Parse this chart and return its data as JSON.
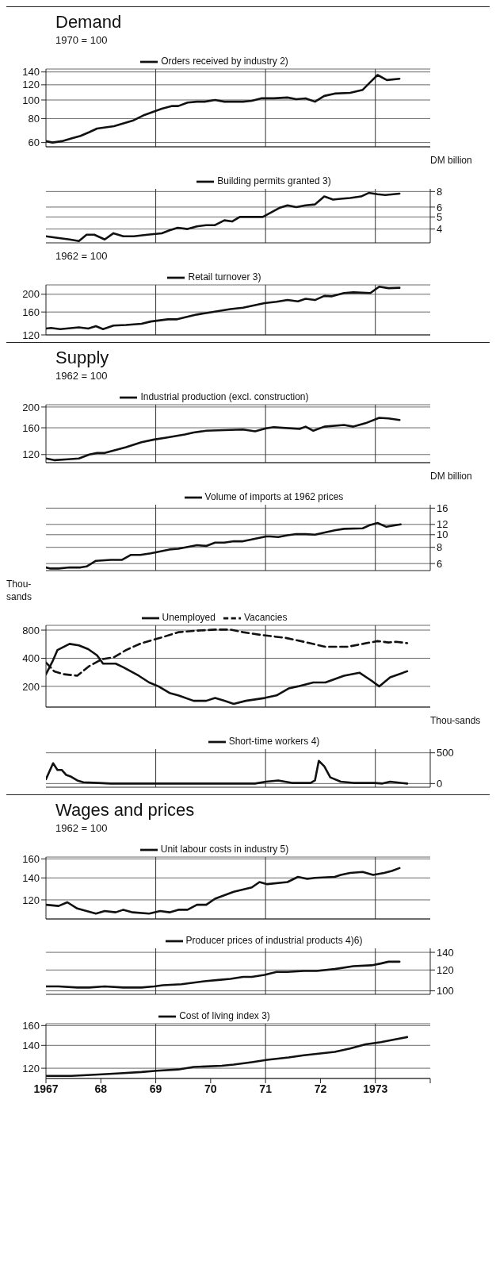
{
  "chart_data": [
    {
      "type": "line",
      "title": "Demand",
      "annotations": [
        "1970 = 100"
      ],
      "xlim": [
        1967,
        1974
      ],
      "ylim": [
        57,
        145
      ],
      "yticks": [
        60,
        80,
        100,
        120,
        140
      ],
      "log": "y",
      "grid": "y",
      "legend": "top",
      "tick_labels": "y",
      "ref_lines": [
        {
          "axis": "x",
          "value": 1969
        },
        {
          "axis": "x",
          "value": 1971
        },
        {
          "axis": "x",
          "value": 1973
        }
      ],
      "series": [
        {
          "name": "Orders received by industry 2)",
          "color": "#111111",
          "x": [
            1967.0,
            1967.12,
            1967.29,
            1967.46,
            1967.63,
            1967.79,
            1967.93,
            1968.24,
            1968.58,
            1968.77,
            1969.11,
            1969.3,
            1969.41,
            1969.58,
            1969.75,
            1969.89,
            1970.08,
            1970.25,
            1970.59,
            1970.75,
            1970.92,
            1971.15,
            1971.4,
            1971.56,
            1971.73,
            1971.9,
            1972.07,
            1972.26,
            1972.54,
            1972.77,
            1972.91,
            1973.04,
            1973.21,
            1973.44
          ],
          "values": [
            61,
            60,
            61,
            63,
            65,
            68,
            71,
            73,
            78,
            83,
            90,
            93,
            93,
            97,
            98,
            98,
            100,
            98,
            98,
            99,
            102,
            102,
            103,
            101,
            102,
            98,
            105,
            108,
            109,
            113,
            124,
            135,
            127,
            129
          ]
        }
      ]
    },
    {
      "type": "line",
      "y2label": "DM billion",
      "xlim": [
        1967,
        1974
      ],
      "y2lim": [
        3.1,
        8.4
      ],
      "y2ticks": [
        4,
        5,
        6,
        8
      ],
      "log": "y2",
      "grid": "y",
      "legend": "top",
      "tick_labels": "y",
      "ref_lines": [
        {
          "axis": "x",
          "value": 1969
        },
        {
          "axis": "x",
          "value": 1971
        },
        {
          "axis": "x",
          "value": 1973
        }
      ],
      "series": [
        {
          "name": "Building permits granted 3)",
          "color": "#111111",
          "axis": "y2",
          "x": [
            1967.0,
            1967.21,
            1967.43,
            1967.6,
            1967.74,
            1967.88,
            1968.07,
            1968.23,
            1968.41,
            1968.6,
            1968.85,
            1969.11,
            1969.25,
            1969.4,
            1969.58,
            1969.75,
            1969.92,
            1970.08,
            1970.25,
            1970.39,
            1970.53,
            1970.95,
            1971.09,
            1971.25,
            1971.4,
            1971.56,
            1971.73,
            1971.9,
            1972.07,
            1972.23,
            1972.37,
            1972.54,
            1972.74,
            1972.88,
            1973.04,
            1973.18,
            1973.44
          ],
          "values": [
            3.5,
            3.4,
            3.3,
            3.2,
            3.6,
            3.6,
            3.3,
            3.7,
            3.5,
            3.5,
            3.6,
            3.7,
            3.9,
            4.1,
            4.0,
            4.2,
            4.3,
            4.3,
            4.7,
            4.6,
            5.0,
            5.0,
            5.4,
            5.9,
            6.2,
            6.0,
            6.2,
            6.3,
            7.3,
            6.9,
            7.0,
            7.1,
            7.3,
            7.8,
            7.6,
            7.5,
            7.7
          ]
        }
      ]
    },
    {
      "type": "line",
      "annotations": [
        "1962 = 100"
      ],
      "xlim": [
        1967,
        1974
      ],
      "ylim": [
        120,
        225
      ],
      "yticks": [
        120,
        160,
        200
      ],
      "log": "y",
      "grid": "y",
      "legend": "top",
      "tick_labels": "y",
      "ref_lines": [
        {
          "axis": "x",
          "value": 1969
        },
        {
          "axis": "x",
          "value": 1971
        },
        {
          "axis": "x",
          "value": 1973
        }
      ],
      "series": [
        {
          "name": "Retail turnover 3)",
          "color": "#111111",
          "x": [
            1967.0,
            1967.09,
            1967.26,
            1967.6,
            1967.77,
            1967.91,
            1968.04,
            1968.23,
            1968.46,
            1968.74,
            1968.91,
            1969.22,
            1969.39,
            1969.75,
            1970.03,
            1970.36,
            1970.59,
            1970.98,
            1971.2,
            1971.4,
            1971.59,
            1971.73,
            1971.9,
            1972.07,
            1972.21,
            1972.43,
            1972.6,
            1972.91,
            1973.07,
            1973.24,
            1973.44
          ],
          "values": [
            130,
            131,
            129,
            132,
            130,
            134,
            129,
            135,
            136,
            138,
            142,
            146,
            146,
            155,
            160,
            166,
            169,
            179,
            182,
            186,
            183,
            189,
            186,
            196,
            195,
            203,
            205,
            203,
            220,
            216,
            217
          ]
        }
      ]
    },
    {
      "type": "line",
      "title": "Supply",
      "annotations": [
        "1962 = 100"
      ],
      "xlim": [
        1967,
        1974
      ],
      "ylim": [
        110,
        205
      ],
      "yticks": [
        120,
        160,
        200
      ],
      "log": "y",
      "grid": "y",
      "legend": "top",
      "tick_labels": "y",
      "ref_lines": [
        {
          "axis": "x",
          "value": 1969
        },
        {
          "axis": "x",
          "value": 1971
        },
        {
          "axis": "x",
          "value": 1973
        }
      ],
      "series": [
        {
          "name": "Industrial production (excl. construction)",
          "color": "#111111",
          "x": [
            1967.0,
            1967.15,
            1967.4,
            1967.6,
            1967.79,
            1967.93,
            1968.07,
            1968.46,
            1968.74,
            1968.97,
            1969.19,
            1969.53,
            1969.69,
            1969.92,
            1970.25,
            1970.59,
            1970.81,
            1971.01,
            1971.15,
            1971.62,
            1971.73,
            1971.87,
            1972.07,
            1972.43,
            1972.6,
            1972.82,
            1973.07,
            1973.24,
            1973.44
          ],
          "values": [
            115,
            113,
            114,
            115,
            120,
            122,
            122,
            130,
            137,
            141,
            144,
            149,
            152,
            155,
            156,
            157,
            154,
            159,
            161,
            158,
            162,
            155,
            162,
            165,
            162,
            168,
            178,
            177,
            174
          ]
        }
      ]
    },
    {
      "type": "line",
      "y2label": "DM billion",
      "xlim": [
        1967,
        1974
      ],
      "y2lim": [
        5.3,
        17
      ],
      "y2ticks": [
        6,
        8,
        10,
        12,
        16
      ],
      "log": "y2",
      "grid": "y",
      "legend": "top",
      "tick_labels": "y",
      "ref_lines": [
        {
          "axis": "x",
          "value": 1969
        },
        {
          "axis": "x",
          "value": 1971
        },
        {
          "axis": "x",
          "value": 1973
        }
      ],
      "series": [
        {
          "name": "Volume of imports at 1962 prices",
          "color": "#111111",
          "axis": "y2",
          "x": [
            1967.0,
            1967.07,
            1967.23,
            1967.43,
            1967.63,
            1967.74,
            1967.91,
            1968.18,
            1968.38,
            1968.55,
            1968.72,
            1968.91,
            1969.25,
            1969.41,
            1969.75,
            1969.92,
            1970.08,
            1970.25,
            1970.42,
            1970.59,
            1970.75,
            1971.01,
            1971.09,
            1971.23,
            1971.4,
            1971.56,
            1971.73,
            1971.9,
            1972.26,
            1972.43,
            1972.77,
            1972.91,
            1973.04,
            1973.2,
            1973.46
          ],
          "values": [
            5.6,
            5.5,
            5.5,
            5.6,
            5.6,
            5.7,
            6.3,
            6.4,
            6.4,
            7.0,
            7.0,
            7.2,
            7.7,
            7.8,
            8.3,
            8.2,
            8.7,
            8.7,
            8.9,
            8.9,
            9.2,
            9.7,
            9.7,
            9.6,
            9.9,
            10.1,
            10.1,
            10.0,
            10.8,
            11.1,
            11.2,
            11.9,
            12.3,
            11.5,
            12.0
          ]
        }
      ]
    },
    {
      "type": "line",
      "ylabel": "Thou-sands",
      "xlim": [
        1967,
        1974
      ],
      "ylim": [
        120,
        900
      ],
      "yticks": [
        200,
        400,
        800
      ],
      "log": "y",
      "grid": "y",
      "legend": "top",
      "tick_labels": "y",
      "ref_lines": [
        {
          "axis": "x",
          "value": 1969
        },
        {
          "axis": "x",
          "value": 1971
        },
        {
          "axis": "x",
          "value": 1973
        }
      ],
      "series": [
        {
          "name": "Vacancies",
          "color": "#111111",
          "line_style": "dashed",
          "x": [
            1967.0,
            1967.15,
            1967.32,
            1967.57,
            1967.79,
            1968.02,
            1968.24,
            1968.46,
            1968.74,
            1969.08,
            1969.41,
            1969.75,
            1970.08,
            1970.36,
            1970.59,
            1970.92,
            1971.37,
            1971.7,
            1972.09,
            1972.49,
            1972.77,
            1973.04,
            1973.24,
            1973.38,
            1973.58
          ],
          "values": [
            360,
            290,
            270,
            260,
            330,
            390,
            410,
            490,
            580,
            660,
            760,
            790,
            810,
            810,
            760,
            710,
            660,
            600,
            530,
            530,
            570,
            610,
            590,
            600,
            580
          ]
        },
        {
          "name": "Unemployed",
          "color": "#111111",
          "x": [
            1967.0,
            1967.12,
            1967.21,
            1967.43,
            1967.6,
            1967.77,
            1967.93,
            1968.04,
            1968.27,
            1968.41,
            1968.69,
            1968.88,
            1969.05,
            1969.25,
            1969.41,
            1969.69,
            1969.92,
            1970.08,
            1970.25,
            1970.42,
            1970.64,
            1970.98,
            1971.2,
            1971.42,
            1971.59,
            1971.87,
            1972.09,
            1972.43,
            1972.71,
            1972.93,
            1973.07,
            1973.27,
            1973.58
          ],
          "values": [
            270,
            370,
            490,
            570,
            550,
            500,
            430,
            350,
            350,
            320,
            260,
            220,
            200,
            170,
            160,
            140,
            140,
            150,
            140,
            130,
            140,
            150,
            160,
            190,
            200,
            220,
            220,
            260,
            280,
            230,
            200,
            250,
            290
          ]
        }
      ]
    },
    {
      "type": "line",
      "y2label": "Thou-sands",
      "xlim": [
        1967,
        1974
      ],
      "y2lim": [
        -60,
        560
      ],
      "y2ticks": [
        0,
        500
      ],
      "grid": "y",
      "legend": "top",
      "tick_labels": "y",
      "ref_lines": [
        {
          "axis": "x",
          "value": 1969
        },
        {
          "axis": "x",
          "value": 1971
        },
        {
          "axis": "x",
          "value": 1973
        }
      ],
      "series": [
        {
          "name": "Short-time workers 4)",
          "color": "#111111",
          "axis": "y2",
          "x": [
            1967.0,
            1967.13,
            1967.21,
            1967.29,
            1967.37,
            1967.46,
            1967.57,
            1967.68,
            1967.96,
            1968.18,
            1970.81,
            1971.01,
            1971.23,
            1971.48,
            1971.82,
            1971.9,
            1971.97,
            1972.07,
            1972.18,
            1972.37,
            1972.6,
            1972.99,
            1973.13,
            1973.27,
            1973.58
          ],
          "values": [
            70,
            330,
            220,
            220,
            140,
            110,
            50,
            20,
            10,
            0,
            0,
            30,
            50,
            10,
            10,
            50,
            370,
            280,
            100,
            30,
            10,
            10,
            0,
            30,
            0
          ]
        }
      ]
    },
    {
      "type": "line",
      "title": "Wages and prices",
      "annotations": [
        "1962 = 100"
      ],
      "xlim": [
        1967,
        1974
      ],
      "ylim": [
        105,
        162
      ],
      "yticks": [
        120,
        140,
        160
      ],
      "log": "y",
      "grid": "y",
      "legend": "top",
      "tick_labels": "y",
      "ref_lines": [
        {
          "axis": "x",
          "value": 1969
        },
        {
          "axis": "x",
          "value": 1971
        },
        {
          "axis": "x",
          "value": 1973
        }
      ],
      "series": [
        {
          "name": "Unit labour costs in industry 5)",
          "color": "#111111",
          "x": [
            1967.0,
            1967.23,
            1967.39,
            1967.57,
            1967.74,
            1967.91,
            1968.07,
            1968.27,
            1968.41,
            1968.58,
            1968.88,
            1969.08,
            1969.25,
            1969.41,
            1969.58,
            1969.75,
            1969.92,
            1970.08,
            1970.42,
            1970.75,
            1970.89,
            1971.03,
            1971.4,
            1971.59,
            1971.76,
            1971.9,
            1972.26,
            1972.37,
            1972.54,
            1972.77,
            1972.96,
            1973.16,
            1973.3,
            1973.44
          ],
          "values": [
            116,
            115,
            118,
            113,
            111,
            109,
            111,
            110,
            112,
            110,
            109,
            111,
            110,
            112,
            112,
            116,
            116,
            121,
            127,
            131,
            136,
            134,
            136,
            141,
            139,
            140,
            141,
            143,
            145,
            146,
            143,
            145,
            147,
            150
          ]
        }
      ]
    },
    {
      "type": "line",
      "xlim": [
        1967,
        1974
      ],
      "y2lim": [
        97,
        145
      ],
      "y2ticks": [
        100,
        120,
        140
      ],
      "log": "y2",
      "grid": "y",
      "legend": "top",
      "tick_labels": "y",
      "ref_lines": [
        {
          "axis": "x",
          "value": 1969
        },
        {
          "axis": "x",
          "value": 1971
        },
        {
          "axis": "x",
          "value": 1973
        }
      ],
      "series": [
        {
          "name": "Producer prices of industrial products 4)6)",
          "color": "#111111",
          "axis": "y2",
          "x": [
            1967.0,
            1967.23,
            1967.57,
            1967.79,
            1968.07,
            1968.41,
            1968.74,
            1968.97,
            1969.13,
            1969.47,
            1969.92,
            1970.14,
            1970.36,
            1970.59,
            1970.75,
            1970.98,
            1971.2,
            1971.4,
            1971.7,
            1971.93,
            1972.26,
            1972.6,
            1972.93,
            1973.1,
            1973.24,
            1973.44
          ],
          "values": [
            104,
            104,
            103,
            103,
            104,
            103,
            103,
            104,
            105,
            106,
            109,
            110,
            111,
            113,
            113,
            115,
            118,
            118,
            119,
            119,
            121,
            124,
            125,
            127,
            129,
            129
          ]
        }
      ]
    },
    {
      "type": "line",
      "xlim": [
        1967,
        1974
      ],
      "xticks": [
        1967,
        {
          "value": 1968,
          "label": "68"
        },
        {
          "value": 1969,
          "label": "69"
        },
        {
          "value": 1970,
          "label": "70"
        },
        {
          "value": 1971,
          "label": "71"
        },
        {
          "value": 1972,
          "label": "72"
        },
        1973,
        {
          "value": 1974,
          "label": null
        }
      ],
      "ylim": [
        112,
        162
      ],
      "yticks": [
        120,
        140,
        160
      ],
      "log": "y",
      "grid": "y",
      "legend": "top",
      "ref_lines": [
        {
          "axis": "x",
          "value": 1969
        },
        {
          "axis": "x",
          "value": 1971
        },
        {
          "axis": "x",
          "value": 1973
        }
      ],
      "series": [
        {
          "name": "Cost of living index 3)",
          "color": "#111111",
          "x": [
            1967.0,
            1967.46,
            1967.96,
            1968.35,
            1968.74,
            1969.02,
            1969.41,
            1969.69,
            1970.2,
            1970.42,
            1970.75,
            1971.03,
            1971.42,
            1971.7,
            1972.26,
            1972.54,
            1972.82,
            1973.1,
            1973.38,
            1973.58
          ],
          "values": [
            114,
            114,
            115,
            116,
            117,
            118,
            119,
            121,
            122,
            123,
            125,
            127,
            129,
            131,
            134,
            137,
            141,
            143,
            146,
            148
          ]
        }
      ]
    }
  ]
}
